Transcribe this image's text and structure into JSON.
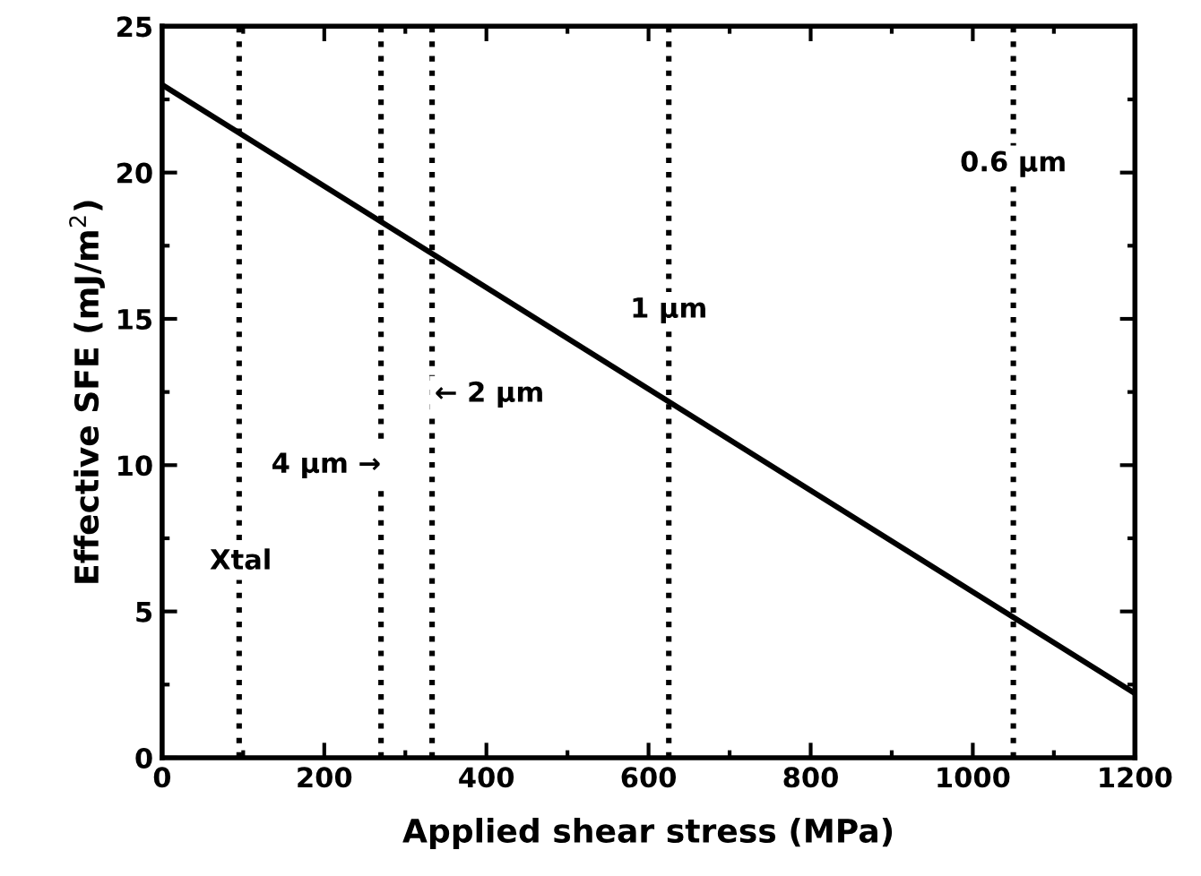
{
  "chart_data": {
    "type": "line",
    "xlabel": "Applied shear stress (MPa)",
    "ylabel": "Effective SFE (mJ/m$^{2}$)",
    "x": [
      0,
      1200
    ],
    "series": [
      {
        "color": "#000000",
        "values": [
          23,
          2.2
        ]
      }
    ],
    "xlim": [
      0,
      1200
    ],
    "ylim": [
      0,
      25
    ],
    "xticks": [
      0,
      200,
      400,
      600,
      800,
      1000,
      1200
    ],
    "yticks": [
      0,
      5,
      10,
      15,
      20,
      25
    ],
    "grid": false,
    "legend": false,
    "marker": "none",
    "line_style": "solid",
    "ref_lines": [
      {
        "axis": "x",
        "value": 95,
        "color": "#000000",
        "line_style": "dotted"
      },
      {
        "axis": "x",
        "value": 270,
        "color": "#000000",
        "line_style": "dotted"
      },
      {
        "axis": "x",
        "value": 333,
        "color": "#000000",
        "line_style": "dotted"
      },
      {
        "axis": "x",
        "value": 625,
        "color": "#000000",
        "line_style": "dotted"
      },
      {
        "axis": "x",
        "value": 1050,
        "color": "#000000",
        "line_style": "dotted"
      }
    ],
    "annotations": [
      {
        "text": "Xtal",
        "x": 97,
        "y": 6.7
      },
      "4 μm →",
      "← 2 μm",
      {
        "text": "1 μm",
        "x": 625,
        "y": 15.3
      },
      {
        "text": "0.6 μm",
        "x": 1050,
        "y": 20.3
      }
    ]
  }
}
